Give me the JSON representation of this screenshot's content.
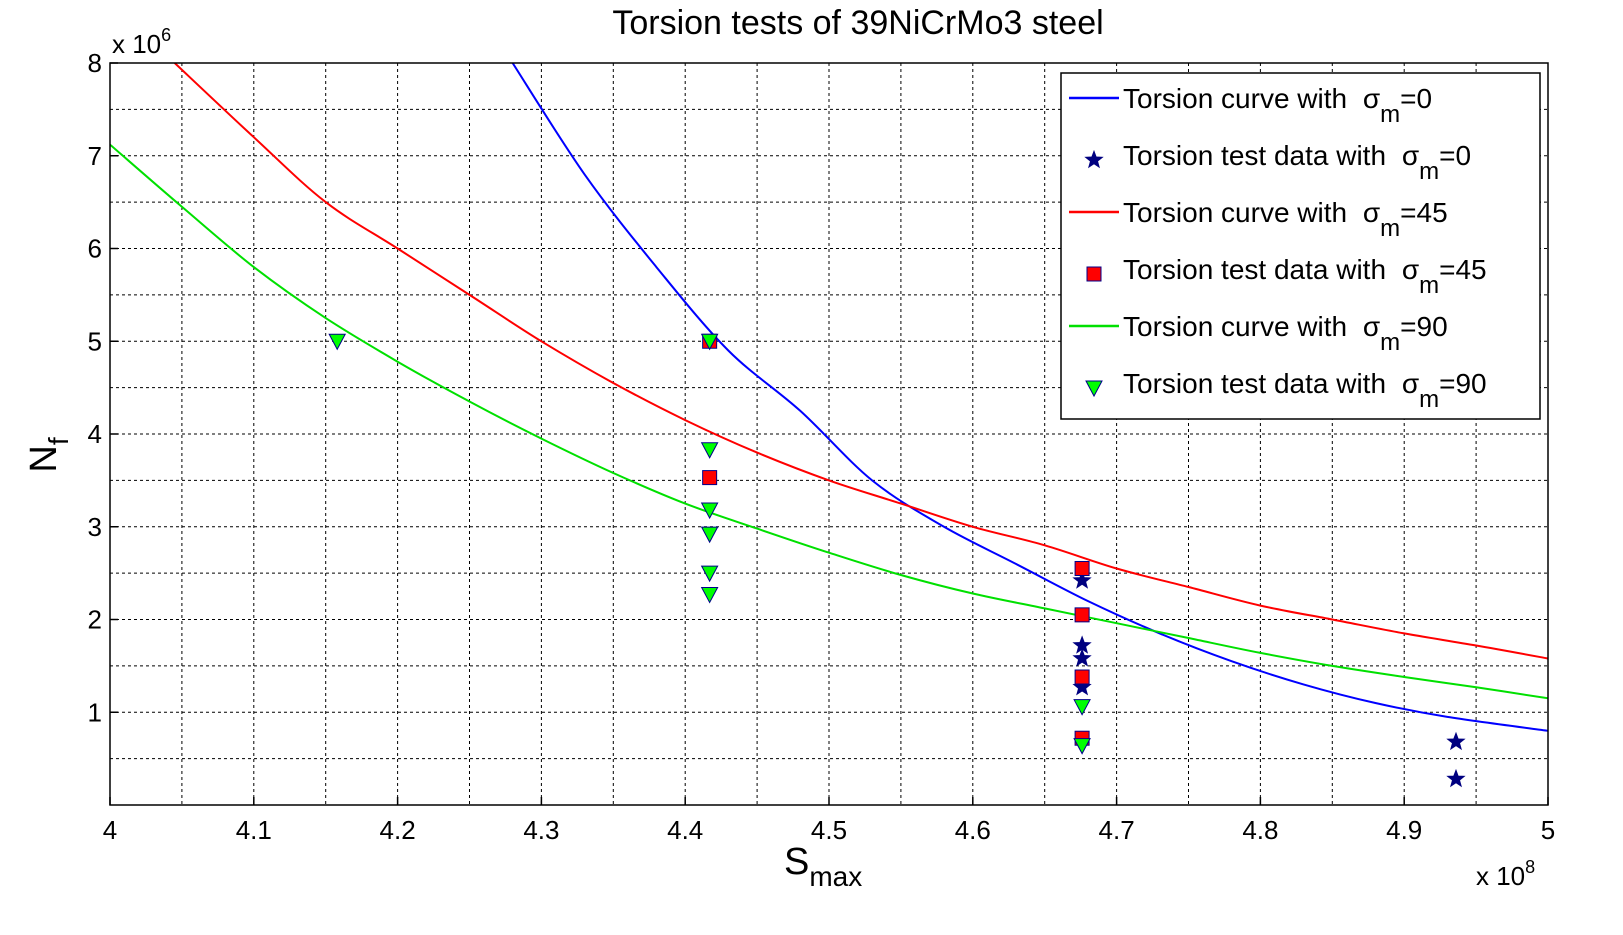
{
  "chart_data": {
    "type": "line",
    "title": "Torsion tests of 39NiCrMo3 steel",
    "xlabel": {
      "main": "S",
      "sub": "max"
    },
    "ylabel": {
      "main": "N",
      "sub": "f"
    },
    "xlim": [
      400000000,
      500000000
    ],
    "ylim": [
      0,
      8000000
    ],
    "x_exponent": {
      "base": "x 10",
      "power": "8"
    },
    "y_exponent": {
      "base": "x 10",
      "power": "6"
    },
    "x_ticks": [
      "4",
      "4.1",
      "4.2",
      "4.3",
      "4.4",
      "4.5",
      "4.6",
      "4.7",
      "4.8",
      "4.9",
      "5"
    ],
    "y_ticks": [
      "1",
      "2",
      "3",
      "4",
      "5",
      "6",
      "7",
      "8"
    ],
    "grid": true,
    "legend_position": "top-right",
    "series": [
      {
        "name": {
          "prefix": "Torsion curve with ",
          "symbol": "σ",
          "sub": "m",
          "suffix": "=0"
        },
        "kind": "line",
        "color": "#0000ff",
        "x": [
          428000000,
          433000000,
          438000000,
          443000000,
          448000000,
          453000000,
          458000000,
          463000000,
          468000000,
          473000000,
          478000000,
          483000000,
          488000000,
          493000000,
          500000000
        ],
        "y": [
          8000000,
          6800000,
          5800000,
          4900000,
          4250000,
          3500000,
          3000000,
          2600000,
          2200000,
          1850000,
          1550000,
          1300000,
          1100000,
          950000,
          800000
        ]
      },
      {
        "name": {
          "prefix": "Torsion test data with ",
          "symbol": "σ",
          "sub": "m",
          "suffix": "=0"
        },
        "kind": "scatter",
        "marker": "star",
        "color": "#000080",
        "x": [
          467600000,
          467600000,
          467600000,
          467600000,
          493600000,
          493600000
        ],
        "y": [
          2420000,
          1720000,
          1580000,
          1270000,
          680000,
          280000
        ]
      },
      {
        "name": {
          "prefix": "Torsion curve with ",
          "symbol": "σ",
          "sub": "m",
          "suffix": "=45"
        },
        "kind": "line",
        "color": "#ff0000",
        "x": [
          404500000,
          410000000,
          415000000,
          420000000,
          425000000,
          430000000,
          435000000,
          440000000,
          445000000,
          450000000,
          455000000,
          460000000,
          465000000,
          470000000,
          475000000,
          480000000,
          485000000,
          490000000,
          495000000,
          500000000
        ],
        "y": [
          8000000,
          7200000,
          6500000,
          6000000,
          5500000,
          5000000,
          4550000,
          4150000,
          3800000,
          3500000,
          3250000,
          3000000,
          2800000,
          2550000,
          2350000,
          2150000,
          2000000,
          1850000,
          1720000,
          1580000
        ]
      },
      {
        "name": {
          "prefix": "Torsion test data with ",
          "symbol": "σ",
          "sub": "m",
          "suffix": "=45"
        },
        "kind": "scatter",
        "marker": "square",
        "color": "#ff0000",
        "x": [
          441700000,
          441700000,
          467600000,
          467600000,
          467600000,
          467600000
        ],
        "y": [
          5000000,
          3530000,
          2550000,
          2050000,
          1380000,
          720000
        ]
      },
      {
        "name": {
          "prefix": "Torsion curve with ",
          "symbol": "σ",
          "sub": "m",
          "suffix": "=90"
        },
        "kind": "line",
        "color": "#00e000",
        "x": [
          400000000,
          405000000,
          410000000,
          415000000,
          420000000,
          425000000,
          430000000,
          435000000,
          440000000,
          445000000,
          450000000,
          455000000,
          460000000,
          465000000,
          470000000,
          475000000,
          480000000,
          485000000,
          490000000,
          495000000,
          500000000
        ],
        "y": [
          7120000,
          6450000,
          5800000,
          5250000,
          4780000,
          4350000,
          3950000,
          3580000,
          3250000,
          2980000,
          2720000,
          2480000,
          2280000,
          2120000,
          1960000,
          1800000,
          1640000,
          1500000,
          1380000,
          1270000,
          1150000
        ]
      },
      {
        "name": {
          "prefix": "Torsion test data with ",
          "symbol": "σ",
          "sub": "m",
          "suffix": "=90"
        },
        "kind": "scatter",
        "marker": "triangle-down",
        "color": "#00ff00",
        "x": [
          415800000,
          441700000,
          441700000,
          441700000,
          441700000,
          441700000,
          441700000,
          467600000,
          467600000
        ],
        "y": [
          5000000,
          5000000,
          3830000,
          3180000,
          2920000,
          2500000,
          2270000,
          1060000,
          640000
        ]
      }
    ]
  }
}
